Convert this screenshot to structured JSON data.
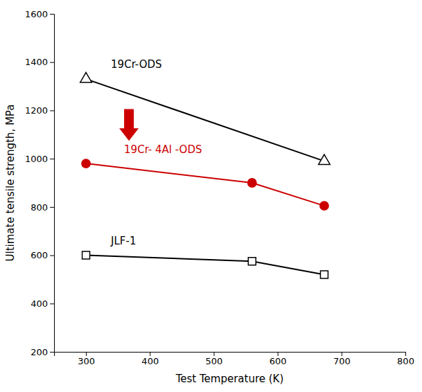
{
  "chart_data": {
    "type": "line",
    "x_label": "Test Temperature (K)",
    "y_label": "Ultimate tensile strength, MPa",
    "xlim": [
      250,
      800
    ],
    "ylim": [
      200,
      1600
    ],
    "xticks": [
      300,
      400,
      500,
      600,
      700,
      800
    ],
    "yticks": [
      200,
      400,
      600,
      800,
      1000,
      1200,
      1400,
      1600
    ],
    "grid": false,
    "series": [
      {
        "name": "19Cr-ODS",
        "color": "#000000",
        "marker": "triangle-open",
        "line_style": "solid",
        "x": [
          300,
          673
        ],
        "values": [
          1330,
          990
        ]
      },
      {
        "name": "19Cr- 4Al -ODS",
        "color": "#cc0000",
        "marker": "circle",
        "line_style": "solid",
        "x": [
          300,
          560,
          673
        ],
        "values": [
          980,
          900,
          805
        ]
      },
      {
        "name": "JLF-1",
        "color": "#000000",
        "marker": "square-open",
        "line_style": "solid",
        "x": [
          300,
          560,
          673
        ],
        "values": [
          600,
          575,
          520
        ]
      }
    ]
  }
}
